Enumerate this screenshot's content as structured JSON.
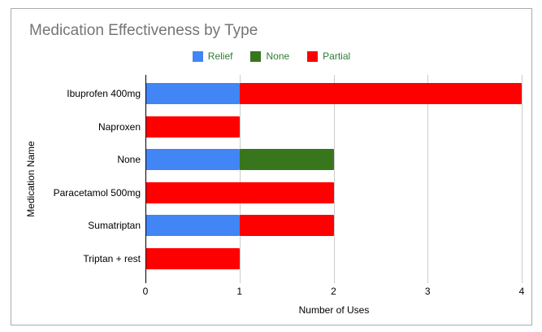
{
  "chart_data": {
    "type": "bar",
    "orientation": "horizontal",
    "stacked": true,
    "title": "Medication Effectiveness by Type",
    "xlabel": "Number of Uses",
    "ylabel": "Medication Name",
    "xlim": [
      0,
      4
    ],
    "xticks": [
      0,
      1,
      2,
      3,
      4
    ],
    "grid": true,
    "legend_position": "top",
    "categories": [
      "Ibuprofen 400mg",
      "Naproxen",
      "None",
      "Paracetamol 500mg",
      "Sumatriptan",
      "Triptan + rest"
    ],
    "series": [
      {
        "name": "Relief",
        "color": "#4285F4",
        "values": [
          1,
          0,
          1,
          0,
          1,
          0
        ]
      },
      {
        "name": "None",
        "color": "#38761D",
        "values": [
          0,
          0,
          1,
          0,
          0,
          0
        ]
      },
      {
        "name": "Partial",
        "color": "#FF0000",
        "values": [
          3,
          1,
          0,
          2,
          1,
          1
        ]
      }
    ],
    "theme": {
      "background": "#FFFFFF",
      "border": "#AAAAAA",
      "title_color": "#757575",
      "legend_text_color": "#2E7D32",
      "grid_color": "#CCCCCC",
      "axis_color": "#000000",
      "label_color": "#000000"
    }
  }
}
